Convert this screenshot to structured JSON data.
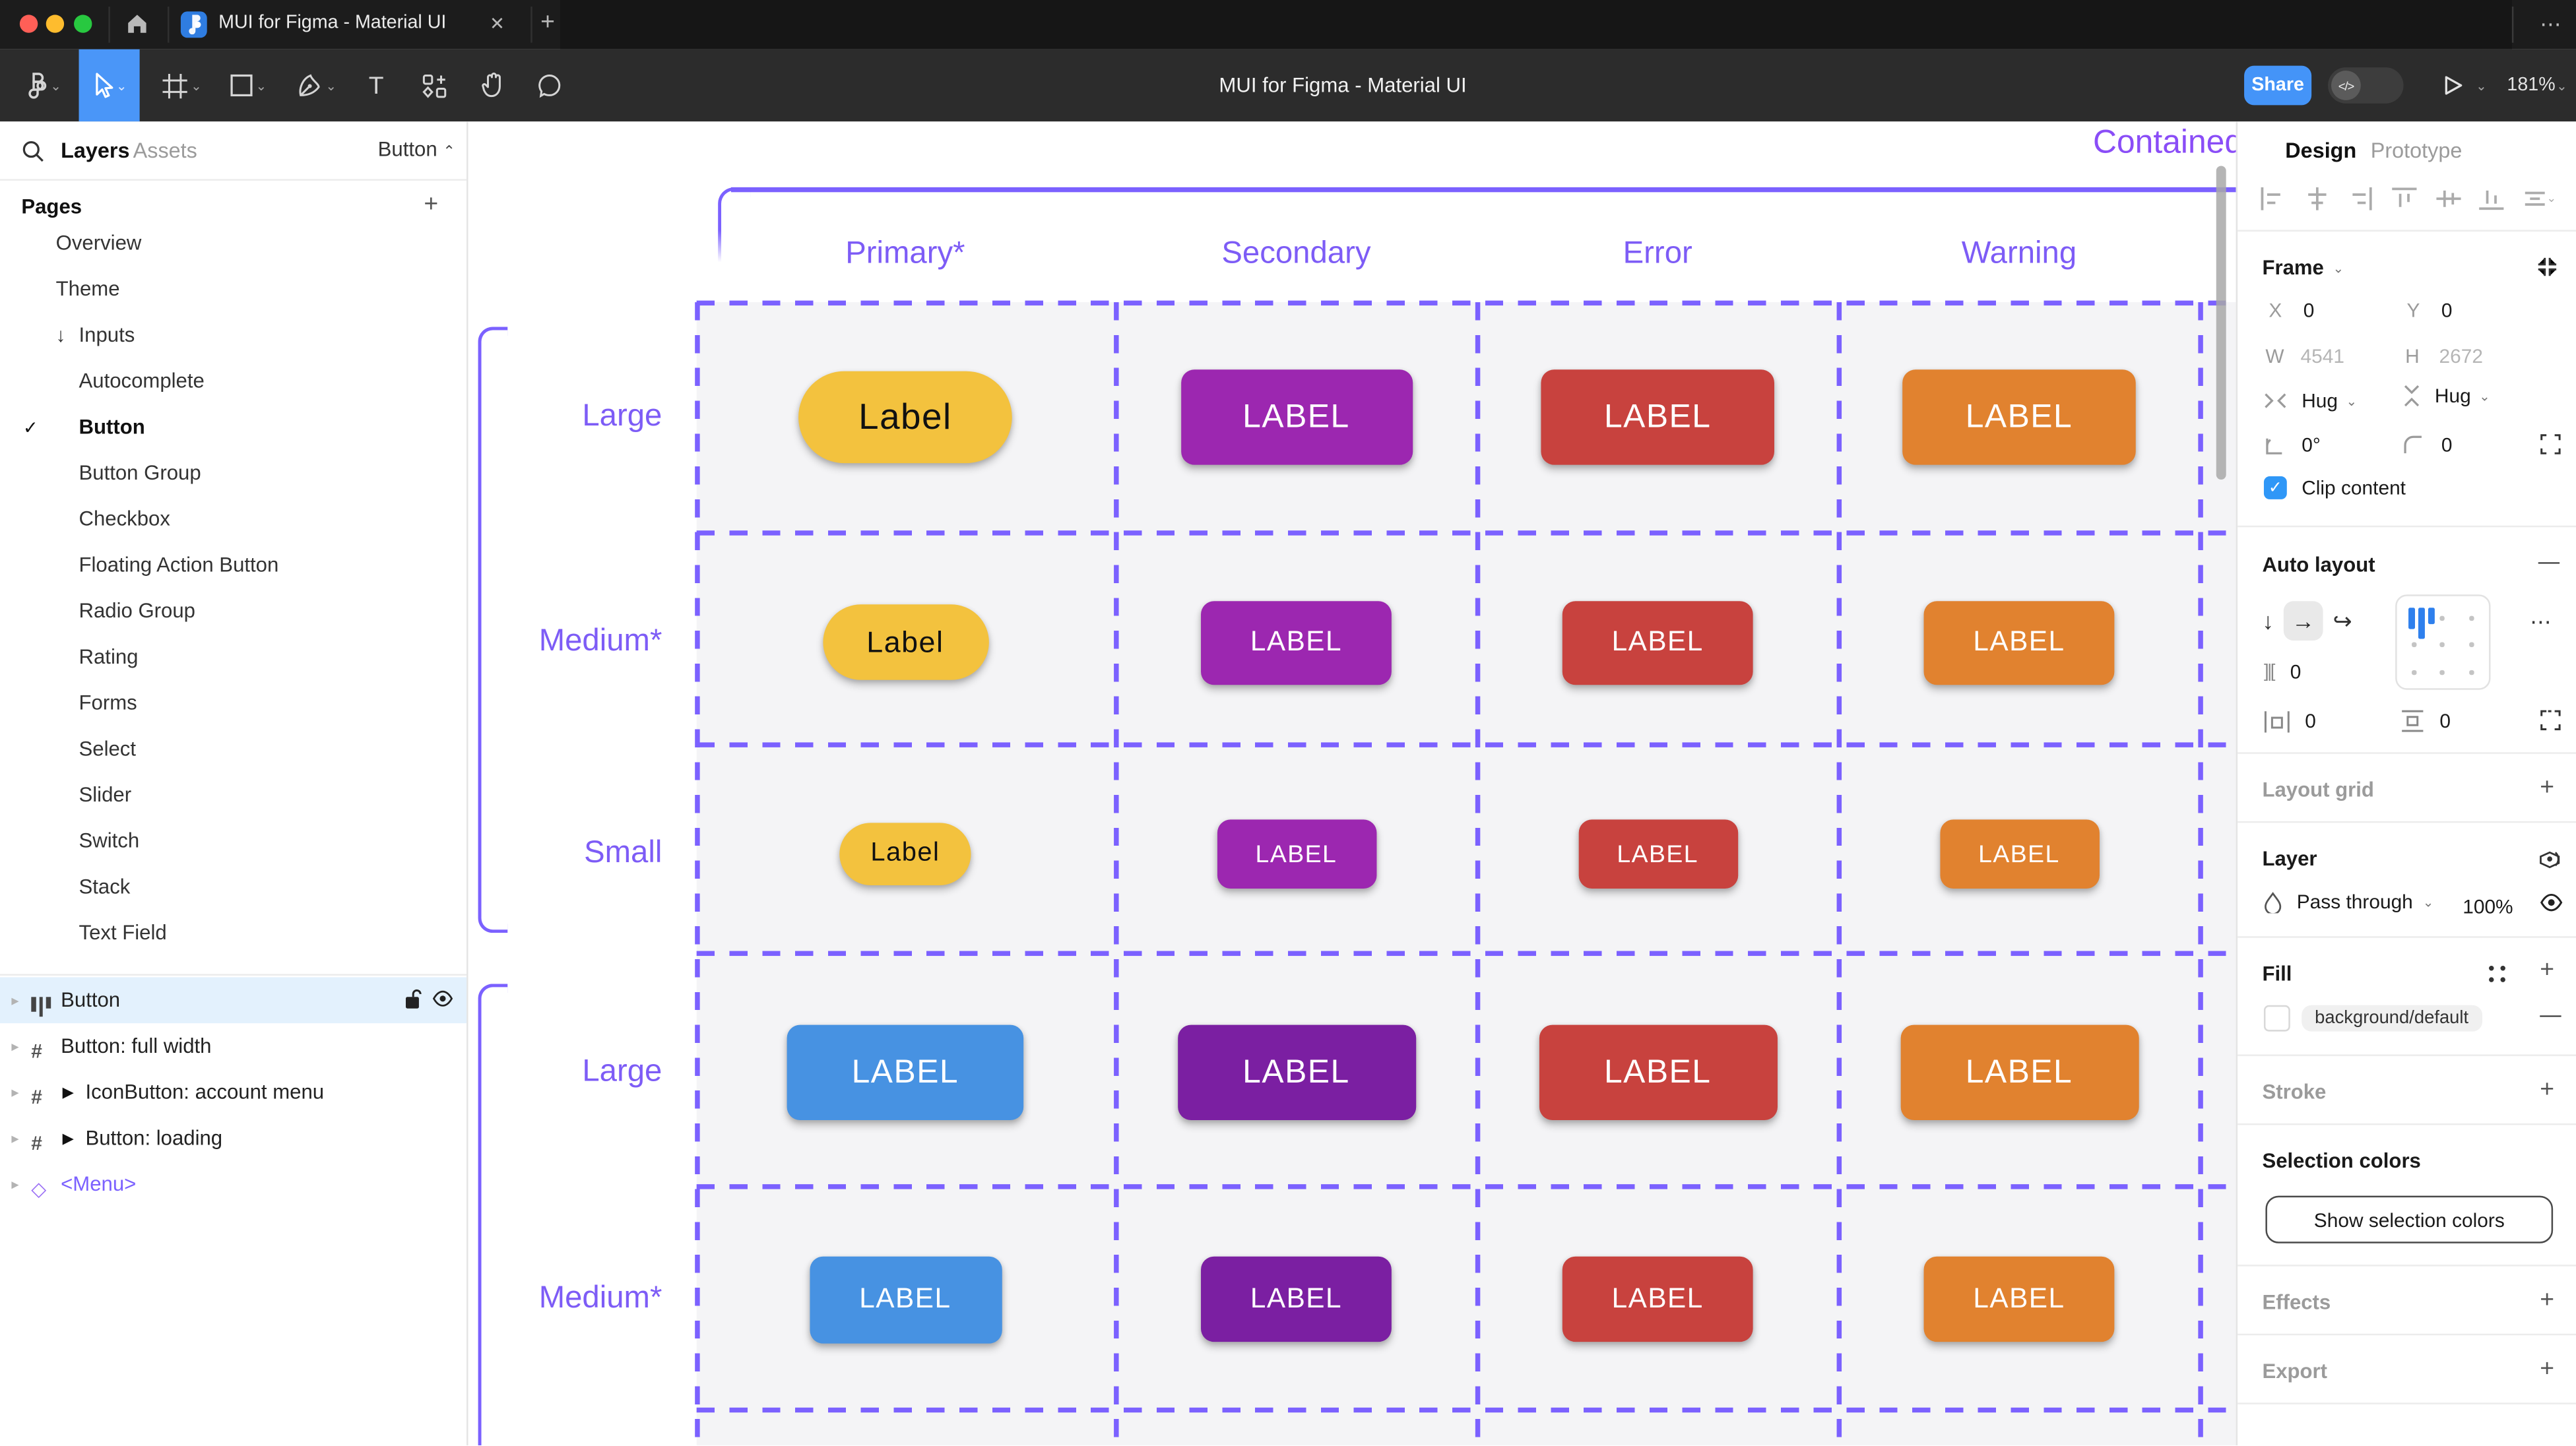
{
  "browser": {
    "tab_title": "MUI for Figma - Material UI",
    "close_glyph": "✕",
    "new_tab_glyph": "+",
    "overflow_glyph": "⋯"
  },
  "toolbar": {
    "title": "MUI for Figma - Material UI",
    "share_label": "Share",
    "dev_toggle_label": "</>",
    "zoom_level": "181%"
  },
  "glyphs": {
    "chevron_down": "⌄",
    "chevron_up": "⌃",
    "chevron_right": "▸",
    "play": "▶",
    "check": "✓",
    "diamond": "◇",
    "hash": "#",
    "arrow_down": "↓",
    "arrow_right": "→",
    "wrap": "↩",
    "plus": "+",
    "minus": "—",
    "dots": "⋯",
    "gap_icon": "]|[",
    "text_tool": "T"
  },
  "left_panel": {
    "tab_layers": "Layers",
    "tab_assets": "Assets",
    "component_dropdown": "Button",
    "pages_header": "Pages",
    "pages": [
      {
        "label": "Overview",
        "indent": 0
      },
      {
        "label": "Theme",
        "indent": 0
      },
      {
        "label": "Inputs",
        "indent": 0,
        "arrow": true
      },
      {
        "label": "Autocomplete",
        "indent": 1
      },
      {
        "label": "Button",
        "indent": 1,
        "checked": true,
        "bold": true
      },
      {
        "label": "Button Group",
        "indent": 1
      },
      {
        "label": "Checkbox",
        "indent": 1
      },
      {
        "label": "Floating Action Button",
        "indent": 1
      },
      {
        "label": "Radio Group",
        "indent": 1
      },
      {
        "label": "Rating",
        "indent": 1
      },
      {
        "label": "Forms",
        "indent": 1
      },
      {
        "label": "Select",
        "indent": 1
      },
      {
        "label": "Slider",
        "indent": 1
      },
      {
        "label": "Switch",
        "indent": 1
      },
      {
        "label": "Stack",
        "indent": 1
      },
      {
        "label": "Text Field",
        "indent": 1
      }
    ],
    "layers": [
      {
        "label": "Button",
        "icon": "auto-layout",
        "selected": true
      },
      {
        "label": "Button: full width",
        "icon": "frame"
      },
      {
        "label": "IconButton: account menu",
        "icon": "frame",
        "play": true
      },
      {
        "label": "Button: loading",
        "icon": "frame",
        "play": true
      },
      {
        "label": "<Menu>",
        "icon": "diamond",
        "purple": true
      }
    ]
  },
  "canvas": {
    "frame_title": "Contained",
    "column_headers": [
      "Primary*",
      "Secondary",
      "Error",
      "Warning"
    ],
    "colors": {
      "grid_purple": "#7B61FF",
      "header_purple": "#7D5CF6",
      "yellow": "#F3C23E",
      "purple_light": "#9C27B0",
      "purple_dark": "#7B1FA2",
      "red": "#C8423E",
      "orange": "#E1822F",
      "blue": "#4792E2"
    },
    "grid": {
      "rows": [
        {
          "label": "Large",
          "cells": [
            {
              "text": "Label",
              "bg": "#F3C23E",
              "fg": "#111111",
              "shape": "pill",
              "w": 130,
              "h": 56,
              "fs": 22
            },
            {
              "text": "LABEL",
              "bg": "#9C27B0",
              "fg": "#FFFFFF",
              "shape": "rect",
              "w": 141,
              "h": 58,
              "fs": 20
            },
            {
              "text": "LABEL",
              "bg": "#C8423E",
              "fg": "#FFFFFF",
              "shape": "rect",
              "w": 142,
              "h": 58,
              "fs": 20
            },
            {
              "text": "LABEL",
              "bg": "#E1822F",
              "fg": "#FFFFFF",
              "shape": "rect",
              "w": 142,
              "h": 58,
              "fs": 20
            }
          ]
        },
        {
          "label": "Medium*",
          "cells": [
            {
              "text": "Label",
              "bg": "#F3C23E",
              "fg": "#111111",
              "shape": "pill",
              "w": 101,
              "h": 46,
              "fs": 18
            },
            {
              "text": "LABEL",
              "bg": "#9C27B0",
              "fg": "#FFFFFF",
              "shape": "rect",
              "w": 116,
              "h": 51,
              "fs": 17
            },
            {
              "text": "LABEL",
              "bg": "#C8423E",
              "fg": "#FFFFFF",
              "shape": "rect",
              "w": 116,
              "h": 51,
              "fs": 17
            },
            {
              "text": "LABEL",
              "bg": "#E1822F",
              "fg": "#FFFFFF",
              "shape": "rect",
              "w": 116,
              "h": 51,
              "fs": 17
            }
          ]
        },
        {
          "label": "Small",
          "cells": [
            {
              "text": "Label",
              "bg": "#F3C23E",
              "fg": "#111111",
              "shape": "pill",
              "w": 80,
              "h": 38,
              "fs": 16
            },
            {
              "text": "LABEL",
              "bg": "#9C27B0",
              "fg": "#FFFFFF",
              "shape": "rect",
              "w": 97,
              "h": 42,
              "fs": 15
            },
            {
              "text": "LABEL",
              "bg": "#C8423E",
              "fg": "#FFFFFF",
              "shape": "rect",
              "w": 97,
              "h": 42,
              "fs": 15
            },
            {
              "text": "LABEL",
              "bg": "#E1822F",
              "fg": "#FFFFFF",
              "shape": "rect",
              "w": 97,
              "h": 42,
              "fs": 15
            }
          ]
        },
        {
          "label": "Large",
          "cells": [
            {
              "text": "LABEL",
              "bg": "#4792E2",
              "fg": "#FFFFFF",
              "shape": "rect",
              "w": 144,
              "h": 58,
              "fs": 20
            },
            {
              "text": "LABEL",
              "bg": "#7B1FA2",
              "fg": "#FFFFFF",
              "shape": "rect",
              "w": 145,
              "h": 58,
              "fs": 20
            },
            {
              "text": "LABEL",
              "bg": "#C8423E",
              "fg": "#FFFFFF",
              "shape": "rect",
              "w": 145,
              "h": 58,
              "fs": 20
            },
            {
              "text": "LABEL",
              "bg": "#E1822F",
              "fg": "#FFFFFF",
              "shape": "rect",
              "w": 145,
              "h": 58,
              "fs": 20
            }
          ]
        },
        {
          "label": "Medium*",
          "cells": [
            {
              "text": "LABEL",
              "bg": "#4792E2",
              "fg": "#FFFFFF",
              "shape": "rect",
              "w": 117,
              "h": 53,
              "fs": 17
            },
            {
              "text": "LABEL",
              "bg": "#7B1FA2",
              "fg": "#FFFFFF",
              "shape": "rect",
              "w": 116,
              "h": 52,
              "fs": 17
            },
            {
              "text": "LABEL",
              "bg": "#C8423E",
              "fg": "#FFFFFF",
              "shape": "rect",
              "w": 116,
              "h": 52,
              "fs": 17
            },
            {
              "text": "LABEL",
              "bg": "#E1822F",
              "fg": "#FFFFFF",
              "shape": "rect",
              "w": 116,
              "h": 52,
              "fs": 17
            }
          ]
        }
      ]
    }
  },
  "inspector": {
    "tab_design": "Design",
    "tab_prototype": "Prototype",
    "frame": {
      "title": "Frame",
      "x_label": "X",
      "x_value": "0",
      "y_label": "Y",
      "y_value": "0",
      "w_label": "W",
      "w_value": "4541",
      "h_label": "H",
      "h_value": "2672",
      "hug_h": "Hug",
      "hug_v": "Hug",
      "rotation": "0°",
      "radius": "0",
      "clip_label": "Clip content"
    },
    "auto_layout": {
      "title": "Auto layout",
      "gap": "0",
      "pad_h": "0",
      "pad_v": "0"
    },
    "layout_grid_title": "Layout grid",
    "layer": {
      "title": "Layer",
      "blend_mode": "Pass through",
      "opacity": "100%"
    },
    "fill": {
      "title": "Fill",
      "token": "background/default"
    },
    "stroke_title": "Stroke",
    "selection_colors": {
      "title": "Selection colors",
      "button_label": "Show selection colors"
    },
    "effects_title": "Effects",
    "export_title": "Export"
  }
}
